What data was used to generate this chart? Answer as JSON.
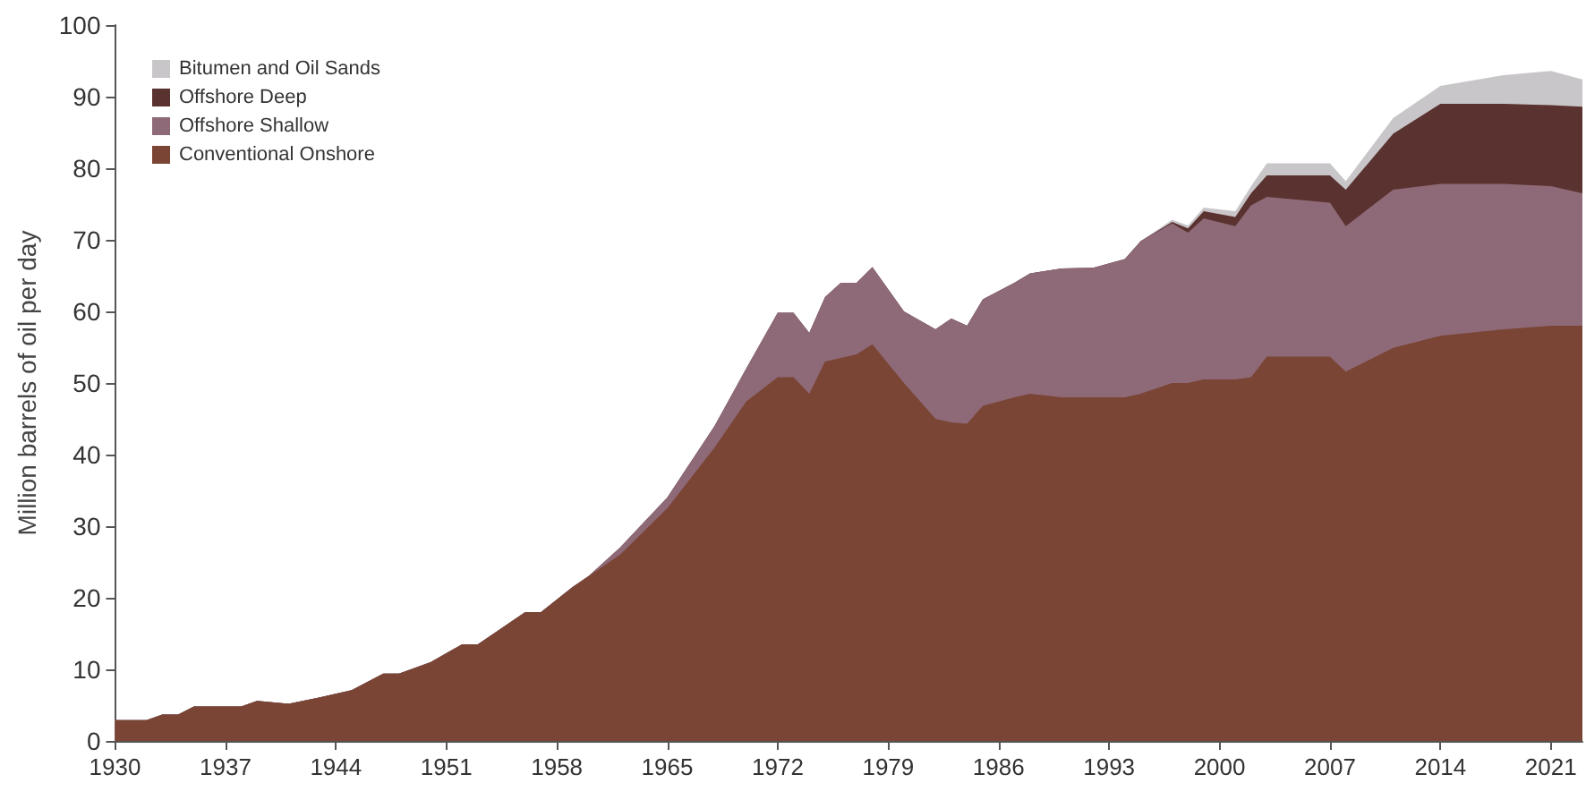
{
  "chart_data": {
    "type": "area",
    "stacked": true,
    "ylabel": "Million barrels of oil per day",
    "x": [
      1930,
      1932,
      1933,
      1934,
      1935,
      1938,
      1939,
      1941,
      1943,
      1945,
      1947,
      1948,
      1950,
      1952,
      1953,
      1955,
      1956,
      1957,
      1959,
      1960,
      1962,
      1965,
      1968,
      1970,
      1972,
      1973,
      1974,
      1975,
      1976,
      1977,
      1978,
      1980,
      1982,
      1983,
      1984,
      1985,
      1987,
      1988,
      1990,
      1992,
      1994,
      1995,
      1997,
      1998,
      1999,
      2001,
      2002,
      2003,
      2007,
      2008,
      2011,
      2014,
      2018,
      2021,
      2023
    ],
    "series": [
      {
        "name": "Conventional Onshore",
        "color": "#7a4535",
        "values": [
          2.9,
          2.9,
          3.7,
          3.7,
          4.8,
          4.8,
          5.6,
          5.2,
          6.1,
          7.1,
          9.4,
          9.4,
          11,
          13.5,
          13.5,
          16.5,
          18,
          18,
          21.5,
          23,
          26,
          32.5,
          41,
          47.4,
          50.8,
          50.8,
          48.5,
          53,
          53.5,
          54,
          55.4,
          50,
          45,
          44.5,
          44.3,
          46.8,
          48,
          48.5,
          48,
          48,
          48,
          48.5,
          50,
          50,
          50.5,
          50.5,
          50.8,
          53.7,
          53.7,
          51.6,
          54.9,
          56.6,
          57.5,
          58,
          58
        ]
      },
      {
        "name": "Offshore Shallow",
        "color": "#8e6a78",
        "values": [
          0,
          0,
          0,
          0,
          0,
          0,
          0,
          0,
          0,
          0,
          0,
          0,
          0,
          0,
          0,
          0,
          0,
          0,
          0,
          0,
          1,
          1.5,
          3,
          4.6,
          9,
          9,
          8.5,
          9,
          10.5,
          10,
          10.8,
          10,
          12.5,
          14.5,
          13.7,
          14.9,
          16,
          16.8,
          18,
          18.1,
          19.3,
          21.3,
          22.3,
          21,
          22.5,
          21.4,
          24,
          22.3,
          21.5,
          20.3,
          22.1,
          21.2,
          20.3,
          19.5,
          18.5
        ]
      },
      {
        "name": "Offshore Deep",
        "color": "#5a3230",
        "values": [
          0,
          0,
          0,
          0,
          0,
          0,
          0,
          0,
          0,
          0,
          0,
          0,
          0,
          0,
          0,
          0,
          0,
          0,
          0,
          0,
          0,
          0,
          0,
          0,
          0,
          0,
          0,
          0,
          0,
          0,
          0,
          0,
          0,
          0,
          0,
          0,
          0,
          0,
          0,
          0,
          0,
          0,
          0.2,
          0.6,
          1,
          1.3,
          1.7,
          3,
          3.8,
          5.1,
          7.8,
          11.2,
          11.2,
          11.3,
          12.1
        ]
      },
      {
        "name": "Bitumen and Oil Sands",
        "color": "#c9c6c9",
        "values": [
          0,
          0,
          0,
          0,
          0,
          0,
          0,
          0,
          0,
          0,
          0,
          0,
          0,
          0,
          0,
          0,
          0,
          0,
          0,
          0,
          0,
          0,
          0,
          0,
          0,
          0,
          0,
          0,
          0,
          0,
          0,
          0,
          0,
          0,
          0,
          0,
          0,
          0,
          0,
          0,
          0,
          0,
          0.3,
          0.4,
          0.5,
          0.8,
          1,
          1.7,
          1.7,
          1.2,
          2.2,
          2.5,
          4,
          4.8,
          3.8
        ]
      }
    ],
    "xlim": [
      1930,
      2023
    ],
    "xticks": [
      1930,
      1937,
      1944,
      1951,
      1958,
      1965,
      1972,
      1979,
      1986,
      1993,
      2000,
      2007,
      2014,
      2021
    ],
    "ylim": [
      0,
      100
    ],
    "yticks": [
      0,
      10,
      20,
      30,
      40,
      50,
      60,
      70,
      80,
      90,
      100
    ],
    "grid": false,
    "legend": "top left"
  }
}
